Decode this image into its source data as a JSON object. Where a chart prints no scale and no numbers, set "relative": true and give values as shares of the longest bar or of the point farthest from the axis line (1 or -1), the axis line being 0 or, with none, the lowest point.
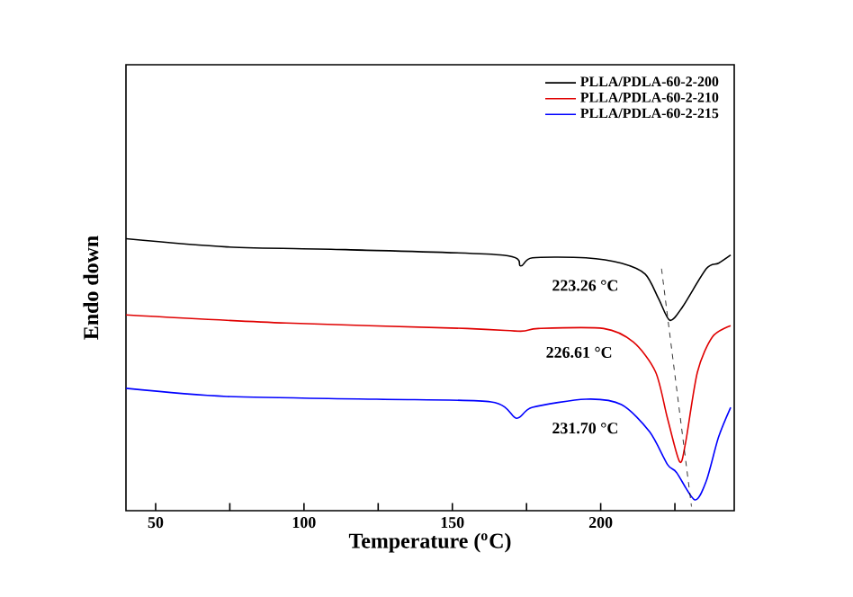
{
  "chart_data": {
    "type": "line",
    "relative": true,
    "xlabel": "Temperature ($^{o}$C)",
    "ylabel": "Endo down",
    "xlim": [
      40,
      245
    ],
    "xticks": [
      50,
      {
        "value": 75,
        "label": null
      },
      100,
      {
        "value": 125,
        "label": null
      },
      150,
      {
        "value": 175,
        "label": null
      },
      200,
      {
        "value": 225,
        "label": null
      }
    ],
    "legend": "top right",
    "series": [
      {
        "name": "PLLA/PDLA-60-2-200",
        "color": "#000000",
        "x": [
          40,
          74,
          114,
          167,
          173,
          177,
          195,
          207,
          215,
          219.5,
          223.3,
          227.6,
          235.6,
          239.7,
          243.8
        ],
        "values": [
          1.0,
          0.97,
          0.96,
          0.94,
          0.9,
          0.93,
          0.93,
          0.91,
          0.87,
          0.78,
          0.7,
          0.75,
          0.89,
          0.91,
          0.94
        ]
      },
      {
        "name": "PLLA/PDLA-60-2-210",
        "color": "#e00000",
        "x": [
          40,
          94,
          155,
          173,
          179,
          201,
          211,
          218.5,
          222.5,
          226.6,
          228.6,
          232.6,
          237.7,
          243.8
        ],
        "values": [
          0.72,
          0.69,
          0.67,
          0.66,
          0.67,
          0.67,
          0.62,
          0.51,
          0.34,
          0.18,
          0.25,
          0.51,
          0.64,
          0.68
        ]
      },
      {
        "name": "PLLA/PDLA-60-2-215",
        "color": "#0000ff",
        "x": [
          40,
          74,
          124.5,
          163,
          171.6,
          177,
          195,
          207,
          216.5,
          222.5,
          225.6,
          231.7,
          235.6,
          239.7,
          243.8
        ],
        "values": [
          0.45,
          0.42,
          0.41,
          0.4,
          0.34,
          0.38,
          0.41,
          0.39,
          0.29,
          0.17,
          0.14,
          0.04,
          0.11,
          0.27,
          0.38
        ]
      },
      {
        "color": "#000000",
        "line_style": "dashed",
        "x": [
          220.5,
          230.6
        ],
        "values": [
          0.89,
          0.015
        ]
      }
    ],
    "annotations": [
      "223.26 °C",
      "226.61 °C",
      "231.70 °C"
    ]
  }
}
